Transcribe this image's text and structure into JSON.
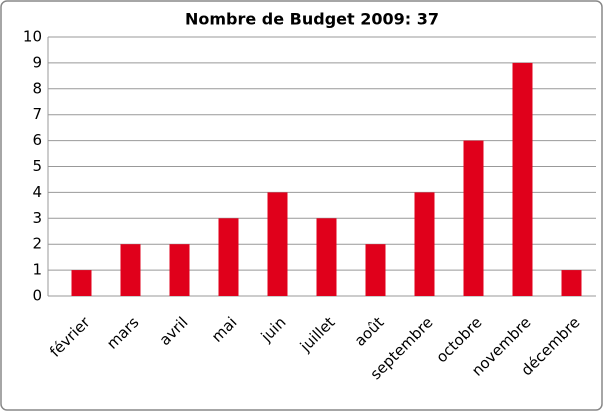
{
  "chart_data": {
    "type": "bar",
    "title": "Nombre de Budget 2009: 37",
    "categories": [
      "février",
      "mars",
      "avril",
      "mai",
      "juin",
      "juillet",
      "août",
      "septembre",
      "octobre",
      "novembre",
      "décembre"
    ],
    "values": [
      1,
      2,
      2,
      3,
      4,
      3,
      2,
      4,
      6,
      9,
      1
    ],
    "color": "#e0001b",
    "ylim": [
      0,
      10
    ],
    "yticks": [
      0,
      1,
      2,
      3,
      4,
      5,
      6,
      7,
      8,
      9,
      10
    ],
    "grid": true
  }
}
